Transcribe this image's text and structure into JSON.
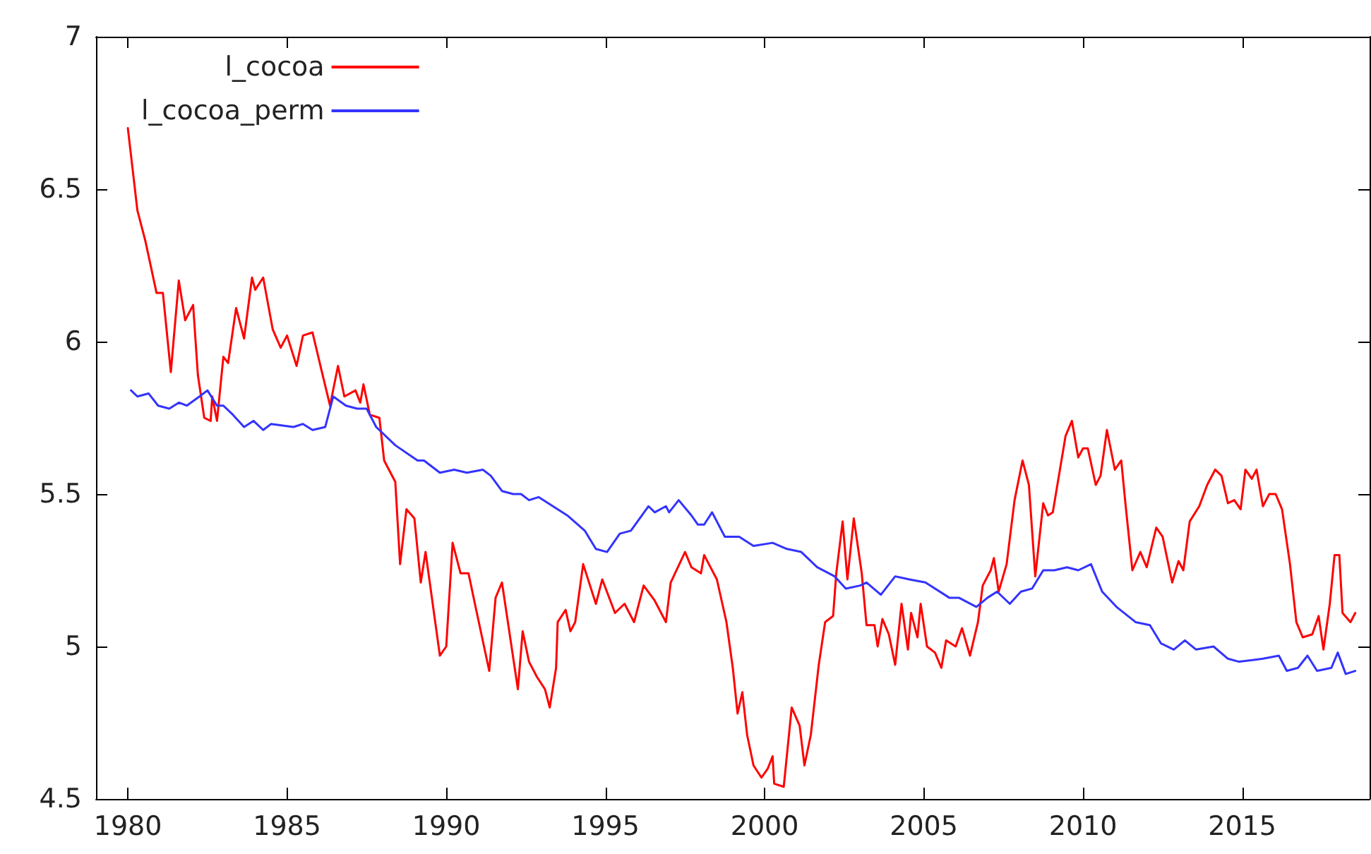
{
  "chart_data": {
    "type": "line",
    "xlim": [
      1979,
      2019
    ],
    "xticks": [
      1980,
      1985,
      1990,
      1995,
      2000,
      2005,
      2010,
      2015
    ],
    "ylim": [
      4.5,
      7
    ],
    "yticks": [
      4.5,
      5,
      5.5,
      6,
      6.5,
      7
    ],
    "grid": false,
    "legend": "top left",
    "marker": "none",
    "line_style": "solid",
    "series": [
      {
        "name": "l_cocoa",
        "color": "#ff0000",
        "x": [
          1980.0,
          1980.3,
          1980.55,
          1980.9,
          1981.1,
          1981.35,
          1981.6,
          1981.8,
          1982.05,
          1982.2,
          1982.4,
          1982.6,
          1982.65,
          1982.8,
          1983.0,
          1983.15,
          1983.4,
          1983.65,
          1983.9,
          1984.0,
          1984.25,
          1984.55,
          1984.8,
          1985.0,
          1985.3,
          1985.5,
          1985.8,
          1986.05,
          1986.35,
          1986.6,
          1986.8,
          1987.15,
          1987.3,
          1987.4,
          1987.6,
          1987.9,
          1988.05,
          1988.4,
          1988.55,
          1988.75,
          1989.0,
          1989.2,
          1989.35,
          1989.8,
          1990.0,
          1990.2,
          1990.45,
          1990.7,
          1990.9,
          1991.35,
          1991.55,
          1991.75,
          1992.25,
          1992.4,
          1992.6,
          1992.85,
          1993.1,
          1993.25,
          1993.45,
          1993.5,
          1993.75,
          1993.9,
          1994.05,
          1994.3,
          1994.7,
          1994.9,
          1995.3,
          1995.6,
          1995.9,
          1996.2,
          1996.55,
          1996.9,
          1997.05,
          1997.5,
          1997.7,
          1998.0,
          1998.1,
          1998.5,
          1998.8,
          1999.0,
          1999.15,
          1999.3,
          1999.45,
          1999.65,
          1999.9,
          2000.1,
          2000.25,
          2000.3,
          2000.6,
          2000.85,
          2001.1,
          2001.25,
          2001.45,
          2001.7,
          2001.9,
          2002.15,
          2002.25,
          2002.45,
          2002.6,
          2002.8,
          2003.05,
          2003.2,
          2003.45,
          2003.55,
          2003.7,
          2003.9,
          2004.1,
          2004.3,
          2004.5,
          2004.6,
          2004.8,
          2004.9,
          2005.1,
          2005.35,
          2005.55,
          2005.7,
          2006.0,
          2006.2,
          2006.45,
          2006.7,
          2006.85,
          2007.1,
          2007.2,
          2007.35,
          2007.6,
          2007.85,
          2008.1,
          2008.3,
          2008.5,
          2008.75,
          2008.9,
          2009.05,
          2009.45,
          2009.65,
          2009.85,
          2010.0,
          2010.15,
          2010.4,
          2010.55,
          2010.75,
          2011.0,
          2011.2,
          2011.35,
          2011.55,
          2011.8,
          2012.0,
          2012.3,
          2012.5,
          2012.8,
          2013.0,
          2013.15,
          2013.35,
          2013.65,
          2013.9,
          2014.15,
          2014.35,
          2014.55,
          2014.75,
          2014.95,
          2015.1,
          2015.3,
          2015.45,
          2015.65,
          2015.85,
          2016.05,
          2016.25,
          2016.5,
          2016.7,
          2016.9,
          2017.2,
          2017.4,
          2017.55,
          2017.75,
          2017.9,
          2018.05,
          2018.15,
          2018.4,
          2018.55
        ],
        "values": [
          6.7,
          6.43,
          6.33,
          6.16,
          6.16,
          5.9,
          6.2,
          6.07,
          6.12,
          5.89,
          5.75,
          5.74,
          5.82,
          5.74,
          5.95,
          5.93,
          6.11,
          6.01,
          6.21,
          6.17,
          6.21,
          6.04,
          5.98,
          6.02,
          5.92,
          6.02,
          6.03,
          5.92,
          5.79,
          5.92,
          5.82,
          5.84,
          5.8,
          5.86,
          5.76,
          5.75,
          5.61,
          5.54,
          5.27,
          5.45,
          5.42,
          5.21,
          5.31,
          4.97,
          5.0,
          5.34,
          5.24,
          5.24,
          5.14,
          4.92,
          5.16,
          5.21,
          4.86,
          5.05,
          4.95,
          4.9,
          4.86,
          4.8,
          4.93,
          5.08,
          5.12,
          5.05,
          5.08,
          5.27,
          5.14,
          5.22,
          5.11,
          5.14,
          5.08,
          5.2,
          5.15,
          5.08,
          5.21,
          5.31,
          5.26,
          5.24,
          5.3,
          5.22,
          5.08,
          4.93,
          4.78,
          4.85,
          4.71,
          4.61,
          4.57,
          4.6,
          4.64,
          4.55,
          4.54,
          4.8,
          4.74,
          4.61,
          4.71,
          4.94,
          5.08,
          5.1,
          5.24,
          5.41,
          5.22,
          5.42,
          5.24,
          5.07,
          5.07,
          5.0,
          5.09,
          5.04,
          4.94,
          5.14,
          4.99,
          5.11,
          5.03,
          5.14,
          5.0,
          4.98,
          4.93,
          5.02,
          5.0,
          5.06,
          4.97,
          5.08,
          5.2,
          5.25,
          5.29,
          5.18,
          5.27,
          5.48,
          5.61,
          5.53,
          5.23,
          5.47,
          5.43,
          5.44,
          5.69,
          5.74,
          5.62,
          5.65,
          5.65,
          5.53,
          5.56,
          5.71,
          5.58,
          5.61,
          5.45,
          5.25,
          5.31,
          5.26,
          5.39,
          5.36,
          5.21,
          5.28,
          5.25,
          5.41,
          5.46,
          5.53,
          5.58,
          5.56,
          5.47,
          5.48,
          5.45,
          5.58,
          5.55,
          5.58,
          5.46,
          5.5,
          5.5,
          5.45,
          5.27,
          5.08,
          5.03,
          5.04,
          5.1,
          4.99,
          5.14,
          5.3,
          5.3,
          5.11,
          5.08,
          5.11
        ]
      },
      {
        "name": "l_cocoa_perm",
        "color": "#3333ff",
        "x": [
          1980.1,
          1980.3,
          1980.65,
          1980.95,
          1981.3,
          1981.6,
          1981.85,
          1982.25,
          1982.5,
          1982.8,
          1983.0,
          1983.3,
          1983.65,
          1983.95,
          1984.25,
          1984.5,
          1985.2,
          1985.5,
          1985.8,
          1986.2,
          1986.45,
          1986.85,
          1987.2,
          1987.5,
          1987.8,
          1988.4,
          1989.1,
          1989.3,
          1989.8,
          1990.25,
          1990.65,
          1991.15,
          1991.4,
          1991.75,
          1992.1,
          1992.35,
          1992.6,
          1992.9,
          1993.35,
          1993.8,
          1994.35,
          1994.7,
          1995.05,
          1995.45,
          1995.8,
          1996.35,
          1996.55,
          1996.9,
          1997.0,
          1997.3,
          1997.7,
          1997.9,
          1998.1,
          1998.35,
          1998.75,
          1999.2,
          1999.65,
          2000.25,
          2000.7,
          2001.15,
          2001.65,
          2002.2,
          2002.55,
          2003.0,
          2003.2,
          2003.65,
          2004.1,
          2004.55,
          2005.05,
          2005.8,
          2006.1,
          2006.65,
          2007.0,
          2007.3,
          2007.7,
          2008.05,
          2008.4,
          2008.75,
          2009.1,
          2009.5,
          2009.85,
          2010.25,
          2010.6,
          2011.05,
          2011.65,
          2012.1,
          2012.45,
          2012.85,
          2013.2,
          2013.55,
          2014.1,
          2014.55,
          2014.9,
          2015.65,
          2016.15,
          2016.4,
          2016.75,
          2017.05,
          2017.35,
          2017.8,
          2018.0,
          2018.25,
          2018.55
        ],
        "values": [
          5.84,
          5.82,
          5.83,
          5.79,
          5.78,
          5.8,
          5.79,
          5.82,
          5.84,
          5.79,
          5.79,
          5.76,
          5.72,
          5.74,
          5.71,
          5.73,
          5.72,
          5.73,
          5.71,
          5.72,
          5.82,
          5.79,
          5.78,
          5.78,
          5.72,
          5.66,
          5.61,
          5.61,
          5.57,
          5.58,
          5.57,
          5.58,
          5.56,
          5.51,
          5.5,
          5.5,
          5.48,
          5.49,
          5.46,
          5.43,
          5.38,
          5.32,
          5.31,
          5.37,
          5.38,
          5.46,
          5.44,
          5.46,
          5.44,
          5.48,
          5.43,
          5.4,
          5.4,
          5.44,
          5.36,
          5.36,
          5.33,
          5.34,
          5.32,
          5.31,
          5.26,
          5.23,
          5.19,
          5.2,
          5.21,
          5.17,
          5.23,
          5.22,
          5.21,
          5.16,
          5.16,
          5.13,
          5.16,
          5.18,
          5.14,
          5.18,
          5.19,
          5.25,
          5.25,
          5.26,
          5.25,
          5.27,
          5.18,
          5.13,
          5.08,
          5.07,
          5.01,
          4.99,
          5.02,
          4.99,
          5.0,
          4.96,
          4.95,
          4.96,
          4.97,
          4.92,
          4.93,
          4.97,
          4.92,
          4.93,
          4.98,
          4.91,
          4.92
        ]
      }
    ]
  }
}
